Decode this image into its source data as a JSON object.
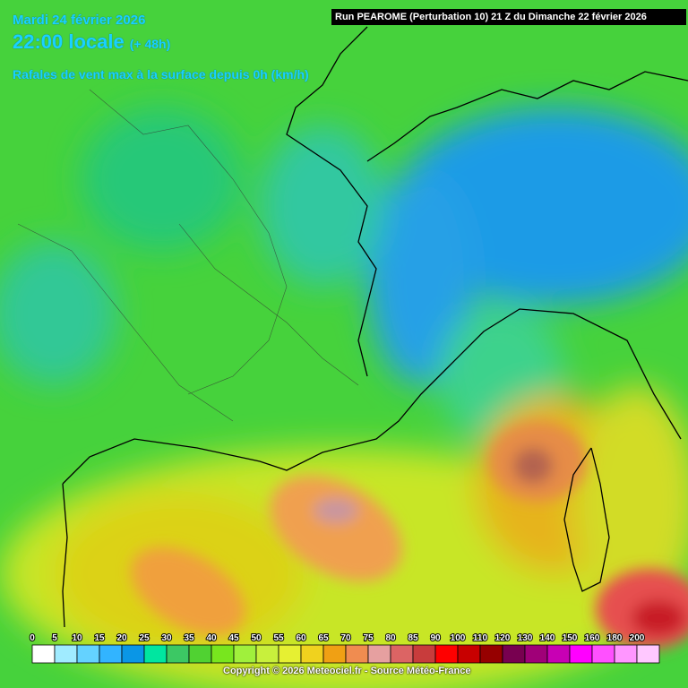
{
  "header": {
    "date": "Mardi 24 février 2026",
    "time": "22:00 locale",
    "lead": "(+ 48h)",
    "subtitle": "Rafales de vent max à la surface depuis 0h (km/h)",
    "run": "Run PEAROME (Perturbation 10) 21 Z du Dimanche 22 février 2026"
  },
  "legend": {
    "labels": [
      0,
      5,
      10,
      15,
      20,
      25,
      30,
      35,
      40,
      45,
      50,
      55,
      60,
      65,
      70,
      75,
      80,
      85,
      90,
      100,
      110,
      120,
      130,
      140,
      150,
      160,
      180,
      200
    ],
    "colors": [
      "#ffffff",
      "#a0ebff",
      "#64d2ff",
      "#32b4ff",
      "#0a96e6",
      "#00e6a0",
      "#3cc864",
      "#50d232",
      "#78e61e",
      "#a0f03c",
      "#c8f03c",
      "#e6f032",
      "#f0d21e",
      "#f0a014",
      "#f08c50",
      "#e6a0a0",
      "#dc6464",
      "#c83c3c",
      "#ff0000",
      "#c80000",
      "#960000",
      "#780050",
      "#a00078",
      "#c800b4",
      "#ff00ff",
      "#ff50ff",
      "#ff96ff",
      "#ffc8ff"
    ]
  },
  "footer": "Copyright © 2026 Meteociel.fr - Source Météo-France"
}
